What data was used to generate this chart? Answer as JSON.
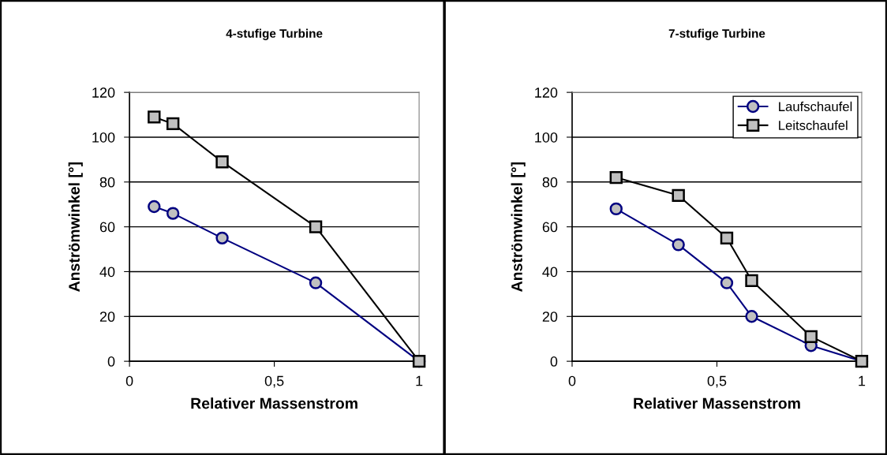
{
  "chart_data": [
    {
      "type": "line",
      "title": "4-stufige Turbine",
      "xlabel": "Relativer Massenstrom",
      "ylabel": "Anströmwinkel [°]",
      "xlim": [
        0,
        1
      ],
      "ylim": [
        0,
        120
      ],
      "xticks": [
        0,
        {
          "value": 0.5,
          "label": "0,5"
        },
        1
      ],
      "yticks": [
        0,
        20,
        40,
        60,
        80,
        100,
        120
      ],
      "grid": "y",
      "legend": false,
      "line_style": "solid",
      "series": [
        {
          "color": "#000080",
          "marker": "circle",
          "x": [
            0.085,
            0.15,
            0.32,
            0.643,
            1
          ],
          "values": [
            69,
            66,
            55,
            35,
            0
          ]
        },
        {
          "color": "#000000",
          "marker": "square",
          "x": [
            0.085,
            0.15,
            0.32,
            0.643,
            1
          ],
          "values": [
            109,
            106,
            89,
            60,
            0
          ]
        }
      ]
    },
    {
      "type": "line",
      "title": "7-stufige Turbine",
      "xlabel": "Relativer Massenstrom",
      "ylabel": "Anströmwinkel [°]",
      "xlim": [
        0,
        1
      ],
      "ylim": [
        0,
        120
      ],
      "xticks": [
        0,
        {
          "value": 0.5,
          "label": "0,5"
        },
        1
      ],
      "yticks": [
        0,
        20,
        40,
        60,
        80,
        100,
        120
      ],
      "grid": "y",
      "legend": "top right",
      "line_style": "solid",
      "series": [
        {
          "name": "Laufschaufel",
          "color": "#000080",
          "marker": "circle",
          "x": [
            0.152,
            0.367,
            0.534,
            0.62,
            0.825,
            1
          ],
          "values": [
            68,
            52,
            35,
            20,
            7,
            0
          ]
        },
        {
          "name": "Leitschaufel",
          "color": "#000000",
          "marker": "square",
          "x": [
            0.152,
            0.367,
            0.534,
            0.62,
            0.825,
            1
          ],
          "values": [
            82,
            74,
            55,
            36,
            11,
            0
          ]
        }
      ]
    }
  ]
}
